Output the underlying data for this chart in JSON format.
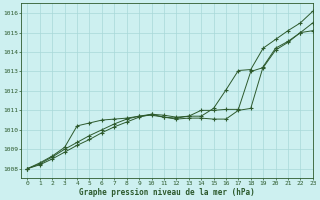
{
  "title": "Graphe pression niveau de la mer (hPa)",
  "bg_color": "#cdf0f0",
  "grid_color": "#a8d8d8",
  "line_color": "#2d5a2d",
  "xlim": [
    -0.5,
    23
  ],
  "ylim": [
    1007.5,
    1016.5
  ],
  "yticks": [
    1008,
    1009,
    1010,
    1011,
    1012,
    1013,
    1014,
    1015,
    1016
  ],
  "xticks": [
    0,
    1,
    2,
    3,
    4,
    5,
    6,
    7,
    8,
    9,
    10,
    11,
    12,
    13,
    14,
    15,
    16,
    17,
    18,
    19,
    20,
    21,
    22,
    23
  ],
  "series": [
    [
      1008.0,
      1008.2,
      1008.5,
      1008.85,
      1009.2,
      1009.5,
      1009.85,
      1010.15,
      1010.4,
      1010.65,
      1010.8,
      1010.65,
      1010.6,
      1010.7,
      1011.0,
      1011.0,
      1011.05,
      1011.05,
      1013.0,
      1013.2,
      1014.1,
      1014.5,
      1015.0,
      1015.5
    ],
    [
      1008.0,
      1008.25,
      1008.6,
      1009.0,
      1009.35,
      1009.7,
      1010.0,
      1010.3,
      1010.55,
      1010.7,
      1010.75,
      1010.65,
      1010.55,
      1010.6,
      1010.6,
      1010.55,
      1010.55,
      1011.0,
      1011.1,
      1013.25,
      1014.2,
      1014.55,
      1015.0,
      1015.1
    ],
    [
      1008.0,
      1008.3,
      1008.65,
      1009.1,
      1010.2,
      1010.35,
      1010.5,
      1010.55,
      1010.6,
      1010.7,
      1010.8,
      1010.75,
      1010.65,
      1010.7,
      1010.7,
      1011.1,
      1012.05,
      1013.05,
      1013.1,
      1014.2,
      1014.65,
      1015.1,
      1015.5,
      1016.1
    ]
  ]
}
